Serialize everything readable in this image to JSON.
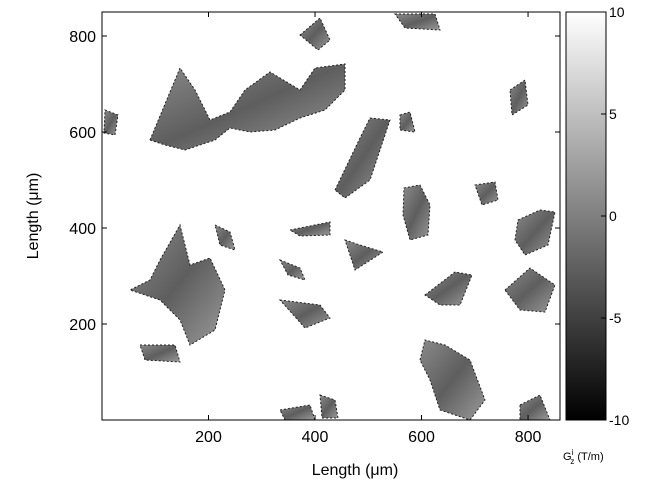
{
  "chart_data": {
    "type": "heatmap",
    "xlabel": "Length (μm)",
    "ylabel": "Length (μm)",
    "xlim": [
      0,
      860
    ],
    "ylim": [
      0,
      850
    ],
    "xticks": [
      200,
      400,
      600,
      800
    ],
    "yticks": [
      200,
      400,
      600,
      800
    ],
    "colorbar": {
      "lim": [
        -10,
        10
      ],
      "ticks": [
        -10,
        -5,
        0,
        5,
        10
      ],
      "label": {
        "symbol": "G",
        "subscript": "z",
        "superscript": "i",
        "unit": "(T/m)"
      },
      "colors": [
        "#000000",
        "#ffffff"
      ]
    }
  }
}
